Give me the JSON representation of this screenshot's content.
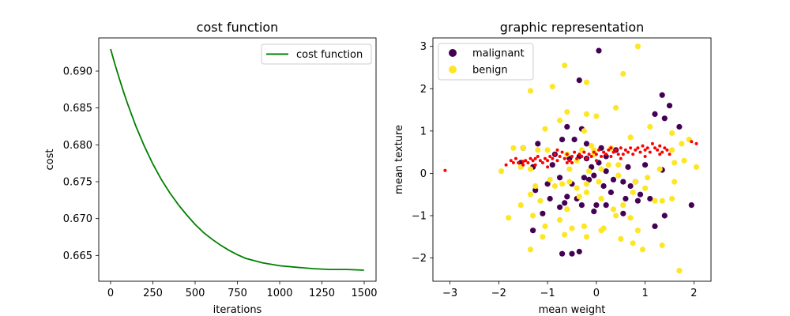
{
  "chart_data": [
    {
      "type": "line",
      "title": "cost function",
      "xlabel": "iterations",
      "ylabel": "cost",
      "xlim": [
        -70,
        1570
      ],
      "ylim": [
        0.6615,
        0.6945
      ],
      "xticks": [
        0,
        250,
        500,
        750,
        1000,
        1250,
        1500
      ],
      "yticks": [
        0.665,
        0.67,
        0.675,
        0.68,
        0.685,
        0.69
      ],
      "legend": {
        "entries": [
          "cost function"
        ],
        "placement": "top-right"
      },
      "series": [
        {
          "name": "cost function",
          "color": "#008000",
          "x": [
            0,
            25,
            50,
            75,
            100,
            150,
            200,
            250,
            300,
            350,
            400,
            450,
            500,
            550,
            600,
            650,
            700,
            750,
            800,
            900,
            1000,
            1100,
            1200,
            1300,
            1400,
            1499
          ],
          "y": [
            0.693,
            0.691,
            0.6891,
            0.6873,
            0.6856,
            0.6825,
            0.6798,
            0.6774,
            0.6753,
            0.6735,
            0.6719,
            0.6705,
            0.6692,
            0.6681,
            0.6672,
            0.6664,
            0.6657,
            0.6651,
            0.6646,
            0.664,
            0.6636,
            0.6634,
            0.6632,
            0.6631,
            0.6631,
            0.663
          ]
        }
      ]
    },
    {
      "type": "scatter",
      "title": "graphic representation",
      "xlabel": "mean weight",
      "ylabel": "mean texture",
      "xlim": [
        -3.35,
        2.35
      ],
      "ylim": [
        -2.55,
        3.2
      ],
      "xticks": [
        -3,
        -2,
        -1,
        0,
        1,
        2
      ],
      "yticks": [
        -2,
        -1,
        0,
        1,
        2,
        3
      ],
      "legend": {
        "entries": [
          "malignant",
          "benign"
        ],
        "placement": "top-left"
      },
      "series": [
        {
          "name": "malignant",
          "color": "#440154",
          "points": [
            [
              0.05,
              2.9
            ],
            [
              -0.35,
              2.2
            ],
            [
              1.35,
              1.85
            ],
            [
              1.5,
              1.6
            ],
            [
              -0.6,
              1.1
            ],
            [
              1.7,
              1.1
            ],
            [
              -0.3,
              1.05
            ],
            [
              1.2,
              1.4
            ],
            [
              -0.7,
              0.8
            ],
            [
              -0.45,
              0.8
            ],
            [
              -0.2,
              0.7
            ],
            [
              1.4,
              1.3
            ],
            [
              -1.2,
              0.7
            ],
            [
              -1.5,
              0.6
            ],
            [
              -0.85,
              0.45
            ],
            [
              -0.55,
              0.35
            ],
            [
              -0.35,
              0.4
            ],
            [
              -0.2,
              0.35
            ],
            [
              0.1,
              0.6
            ],
            [
              0.4,
              0.55
            ],
            [
              0.65,
              0.15
            ],
            [
              1.0,
              0.2
            ],
            [
              1.35,
              0.08
            ],
            [
              -1.55,
              0.25
            ],
            [
              -1.3,
              0.15
            ],
            [
              -0.9,
              0.2
            ],
            [
              0.2,
              0.4
            ],
            [
              -0.1,
              0.15
            ],
            [
              0.05,
              0.25
            ],
            [
              0.2,
              0.05
            ],
            [
              -0.05,
              -0.05
            ],
            [
              -1.25,
              -0.4
            ],
            [
              -1.0,
              -0.25
            ],
            [
              -0.75,
              -0.1
            ],
            [
              -0.5,
              -0.25
            ],
            [
              -0.25,
              -0.1
            ],
            [
              0.15,
              -0.3
            ],
            [
              0.55,
              -0.2
            ],
            [
              0.8,
              -0.2
            ],
            [
              -0.95,
              -0.6
            ],
            [
              -0.65,
              -0.7
            ],
            [
              -0.4,
              -0.6
            ],
            [
              -0.3,
              -0.75
            ],
            [
              0.0,
              -0.75
            ],
            [
              0.3,
              -0.45
            ],
            [
              0.6,
              -0.6
            ],
            [
              0.9,
              -0.5
            ],
            [
              -1.1,
              -0.95
            ],
            [
              -0.75,
              -0.8
            ],
            [
              -0.05,
              -0.9
            ],
            [
              0.55,
              -0.95
            ],
            [
              1.4,
              -1.0
            ],
            [
              1.95,
              -0.75
            ],
            [
              -0.5,
              -1.9
            ],
            [
              -0.35,
              -1.85
            ],
            [
              0.2,
              -0.75
            ],
            [
              0.85,
              -0.65
            ],
            [
              1.2,
              -1.25
            ],
            [
              -1.3,
              -1.35
            ],
            [
              -0.15,
              -0.15
            ],
            [
              0.35,
              -0.15
            ],
            [
              1.1,
              -0.6
            ],
            [
              -0.6,
              -0.55
            ],
            [
              0.7,
              -0.3
            ],
            [
              -0.7,
              -1.9
            ]
          ]
        },
        {
          "name": "benign",
          "color": "#fde725",
          "points": [
            [
              0.85,
              3.0
            ],
            [
              -0.65,
              2.55
            ],
            [
              0.55,
              2.35
            ],
            [
              -1.35,
              1.95
            ],
            [
              -0.2,
              2.15
            ],
            [
              -0.9,
              2.05
            ],
            [
              0.4,
              1.55
            ],
            [
              -0.6,
              1.45
            ],
            [
              -0.2,
              1.4
            ],
            [
              -0.75,
              1.25
            ],
            [
              0.0,
              1.35
            ],
            [
              -1.05,
              1.05
            ],
            [
              1.1,
              1.1
            ],
            [
              -0.25,
              1.0
            ],
            [
              0.7,
              0.85
            ],
            [
              1.55,
              0.95
            ],
            [
              1.9,
              0.8
            ],
            [
              -1.2,
              0.55
            ],
            [
              -1.0,
              0.55
            ],
            [
              -0.1,
              0.65
            ],
            [
              -0.4,
              0.3
            ],
            [
              -0.05,
              0.55
            ],
            [
              0.3,
              0.6
            ],
            [
              -1.5,
              0.6
            ],
            [
              -1.7,
              0.6
            ],
            [
              -1.95,
              0.05
            ],
            [
              -1.55,
              0.15
            ],
            [
              -1.35,
              0.1
            ],
            [
              -0.55,
              0.1
            ],
            [
              -0.15,
              0.05
            ],
            [
              0.1,
              0.1
            ],
            [
              0.45,
              0.2
            ],
            [
              1.3,
              0.1
            ],
            [
              1.6,
              0.25
            ],
            [
              1.8,
              0.3
            ],
            [
              2.05,
              0.15
            ],
            [
              1.75,
              0.7
            ],
            [
              -1.25,
              -0.3
            ],
            [
              -0.95,
              -0.15
            ],
            [
              -0.7,
              -0.25
            ],
            [
              -0.55,
              -0.2
            ],
            [
              -0.4,
              -0.35
            ],
            [
              -0.2,
              -0.25
            ],
            [
              0.05,
              -0.2
            ],
            [
              0.25,
              0.2
            ],
            [
              0.45,
              -0.05
            ],
            [
              0.8,
              -0.2
            ],
            [
              1.05,
              -0.1
            ],
            [
              1.6,
              -0.2
            ],
            [
              -1.55,
              -0.75
            ],
            [
              -1.35,
              -0.5
            ],
            [
              -1.15,
              -0.65
            ],
            [
              -0.85,
              -0.3
            ],
            [
              -0.6,
              -0.85
            ],
            [
              -0.35,
              -0.55
            ],
            [
              -0.2,
              -0.45
            ],
            [
              0.1,
              -0.6
            ],
            [
              0.35,
              -0.85
            ],
            [
              0.55,
              -0.75
            ],
            [
              0.75,
              -0.45
            ],
            [
              1.0,
              -0.35
            ],
            [
              1.2,
              -0.65
            ],
            [
              1.35,
              -0.65
            ],
            [
              1.55,
              -0.6
            ],
            [
              -1.8,
              -1.05
            ],
            [
              -1.3,
              -1.0
            ],
            [
              -1.05,
              -1.25
            ],
            [
              -0.75,
              -1.1
            ],
            [
              -0.5,
              -1.3
            ],
            [
              -0.2,
              -1.5
            ],
            [
              0.1,
              -1.35
            ],
            [
              0.4,
              -1.0
            ],
            [
              0.7,
              -1.05
            ],
            [
              0.85,
              -1.35
            ],
            [
              -1.35,
              -1.8
            ],
            [
              -1.1,
              -1.5
            ],
            [
              -0.65,
              -1.45
            ],
            [
              -0.25,
              -1.25
            ],
            [
              0.15,
              -1.3
            ],
            [
              0.5,
              -1.55
            ],
            [
              0.75,
              -1.65
            ],
            [
              0.95,
              -1.8
            ],
            [
              1.35,
              -1.7
            ],
            [
              1.7,
              -2.3
            ],
            [
              1.55,
              0.55
            ],
            [
              -0.05,
              0.45
            ],
            [
              -0.3,
              0.55
            ],
            [
              -0.6,
              0.45
            ]
          ]
        },
        {
          "color": "#ff0000",
          "points": [
            [
              -3.1,
              0.07
            ],
            [
              -1.85,
              0.2
            ],
            [
              -1.75,
              0.3
            ],
            [
              -1.65,
              0.35
            ],
            [
              -1.6,
              0.25
            ],
            [
              -1.5,
              0.28
            ],
            [
              -1.45,
              0.3
            ],
            [
              -1.4,
              0.25
            ],
            [
              -1.35,
              0.35
            ],
            [
              -1.3,
              0.3
            ],
            [
              -1.25,
              0.2
            ],
            [
              -1.2,
              0.4
            ],
            [
              -1.15,
              0.3
            ],
            [
              -1.1,
              0.25
            ],
            [
              -1.05,
              0.35
            ],
            [
              -1.0,
              0.3
            ],
            [
              -0.95,
              0.4
            ],
            [
              -0.9,
              0.35
            ],
            [
              -0.85,
              0.45
            ],
            [
              -0.8,
              0.3
            ],
            [
              -0.75,
              0.4
            ],
            [
              -0.7,
              0.5
            ],
            [
              -0.65,
              0.35
            ],
            [
              -0.6,
              0.45
            ],
            [
              -0.55,
              0.3
            ],
            [
              -0.5,
              0.4
            ],
            [
              -0.45,
              0.5
            ],
            [
              -0.4,
              0.35
            ],
            [
              -0.35,
              0.45
            ],
            [
              -0.3,
              0.4
            ],
            [
              -0.25,
              0.5
            ],
            [
              -0.2,
              0.35
            ],
            [
              -0.15,
              0.45
            ],
            [
              -0.1,
              0.4
            ],
            [
              -0.05,
              0.5
            ],
            [
              0.0,
              0.45
            ],
            [
              0.05,
              0.55
            ],
            [
              0.1,
              0.4
            ],
            [
              0.15,
              0.5
            ],
            [
              0.2,
              0.45
            ],
            [
              0.25,
              0.55
            ],
            [
              0.3,
              0.4
            ],
            [
              0.35,
              0.5
            ],
            [
              0.4,
              0.55
            ],
            [
              0.45,
              0.45
            ],
            [
              0.5,
              0.6
            ],
            [
              0.55,
              0.45
            ],
            [
              0.6,
              0.55
            ],
            [
              0.65,
              0.5
            ],
            [
              0.7,
              0.6
            ],
            [
              0.75,
              0.45
            ],
            [
              0.8,
              0.55
            ],
            [
              0.85,
              0.6
            ],
            [
              0.9,
              0.5
            ],
            [
              0.95,
              0.65
            ],
            [
              1.0,
              0.55
            ],
            [
              1.05,
              0.6
            ],
            [
              1.1,
              0.5
            ],
            [
              1.15,
              0.7
            ],
            [
              1.2,
              0.6
            ],
            [
              1.25,
              0.55
            ],
            [
              1.3,
              0.65
            ],
            [
              1.35,
              0.5
            ],
            [
              1.4,
              0.6
            ],
            [
              1.45,
              0.55
            ],
            [
              1.5,
              0.45
            ],
            [
              1.95,
              0.75
            ],
            [
              2.05,
              0.7
            ],
            [
              -1.5,
              0.2
            ],
            [
              -1.0,
              0.15
            ],
            [
              -0.5,
              0.25
            ],
            [
              0.0,
              0.3
            ],
            [
              0.5,
              0.35
            ],
            [
              1.0,
              0.4
            ],
            [
              1.3,
              0.45
            ],
            [
              -1.7,
              0.25
            ],
            [
              -0.8,
              0.55
            ],
            [
              0.3,
              0.6
            ],
            [
              -1.25,
              0.35
            ],
            [
              -0.6,
              0.25
            ]
          ]
        }
      ]
    }
  ]
}
